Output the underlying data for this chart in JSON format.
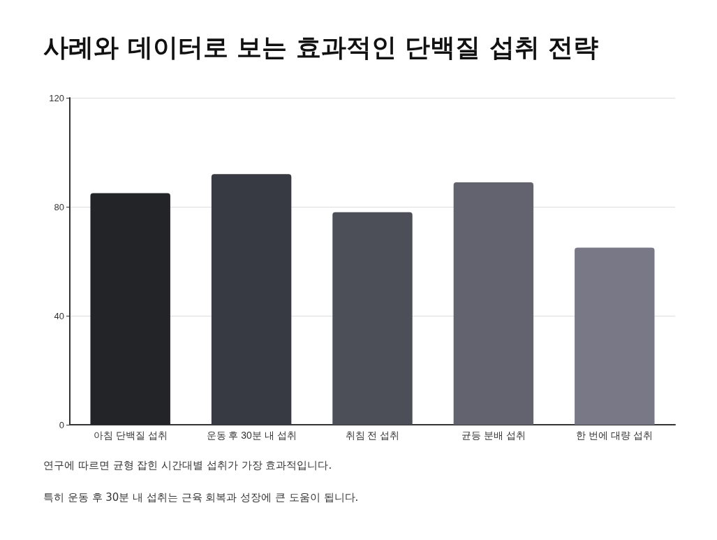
{
  "chart_data": {
    "type": "bar",
    "title": "사례와 데이터로 보는 효과적인 단백질 섭취 전략",
    "categories": [
      "아침 단백질 섭취",
      "운동 후 30분 내 섭취",
      "취침 전 섭취",
      "균등 분배 섭취",
      "한 번에 대량 섭취"
    ],
    "values": [
      85,
      92,
      78,
      89,
      65
    ],
    "colors": [
      "#232428",
      "#373a42",
      "#4c4f58",
      "#62636f",
      "#787887"
    ],
    "ylim": [
      0,
      120
    ],
    "yticks": [
      0,
      40,
      80,
      120
    ],
    "grid": "y",
    "annotations": [
      "연구에 따르면 균형 잡힌 시간대별 섭취가 가장 효과적입니다.",
      "특히 운동 후 30분 내 섭취는 근육 회복과 성장에 큰 도움이 됩니다."
    ]
  }
}
